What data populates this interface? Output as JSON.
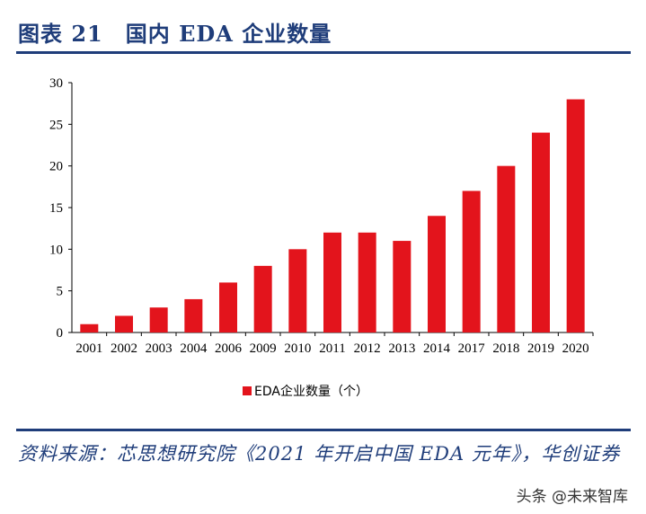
{
  "header": {
    "title": "图表 21　国内 EDA 企业数量"
  },
  "chart_data": {
    "type": "bar",
    "title": "",
    "categories": [
      "2001",
      "2002",
      "2003",
      "2004",
      "2006",
      "2009",
      "2010",
      "2011",
      "2012",
      "2013",
      "2014",
      "2017",
      "2018",
      "2019",
      "2020"
    ],
    "series": [
      {
        "name": "EDA企业数量（个）",
        "values": [
          1,
          2,
          3,
          4,
          6,
          8,
          10,
          12,
          12,
          11,
          14,
          17,
          20,
          24,
          28
        ],
        "color": "#e3141c"
      }
    ],
    "yticks": [
      "0",
      "5",
      "10",
      "15",
      "20",
      "25",
      "30"
    ],
    "ylim": [
      0,
      30
    ],
    "grid": false,
    "legend": "bottom"
  },
  "footer": {
    "source": "资料来源：芯思想研究院《2021 年开启中国 EDA 元年》，华创证券",
    "watermark": "头条 @未来智库"
  }
}
